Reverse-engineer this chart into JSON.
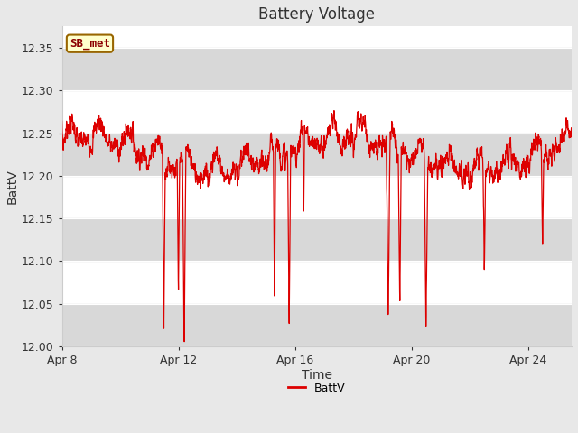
{
  "title": "Battery Voltage",
  "xlabel": "Time",
  "ylabel": "BattV",
  "ylim": [
    12.0,
    12.375
  ],
  "yticks": [
    12.0,
    12.05,
    12.1,
    12.15,
    12.2,
    12.25,
    12.3,
    12.35
  ],
  "xtick_labels": [
    "Apr 8",
    "Apr 12",
    "Apr 16",
    "Apr 20",
    "Apr 24"
  ],
  "xtick_positions": [
    0,
    4,
    8,
    12,
    16
  ],
  "xlim": [
    0,
    17.5
  ],
  "legend_label": "BattV",
  "line_color": "#dd0000",
  "bg_color": "#e8e8e8",
  "ax_bg_color": "#ffffff",
  "band_color": "#d8d8d8",
  "sb_met_label": "SB_met",
  "sb_met_bg": "#ffffcc",
  "sb_met_border": "#996600",
  "sb_met_text_color": "#8b0000",
  "title_fontsize": 12,
  "axis_label_fontsize": 10,
  "tick_fontsize": 9,
  "legend_fontsize": 9
}
